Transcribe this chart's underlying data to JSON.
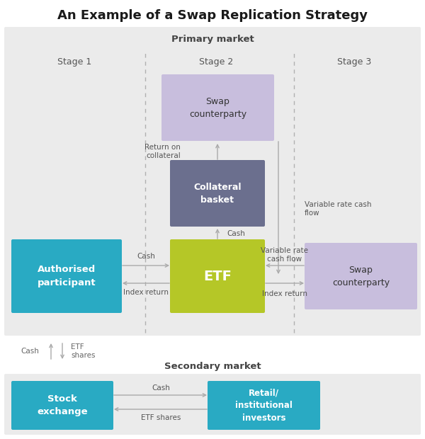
{
  "title": "An Example of a Swap Replication Strategy",
  "primary_market_label": "Primary market",
  "secondary_market_label": "Secondary market",
  "stage1_label": "Stage 1",
  "stage2_label": "Stage 2",
  "stage3_label": "Stage 3",
  "arrow_color": "#aaaaaa",
  "text_color_dark": "#444444",
  "text_color_mid": "#666666",
  "bg_primary": "#ebebeb",
  "bg_secondary": "#ebebeb",
  "color_swap_top": "#c8bedd",
  "color_collateral": "#6b6f8e",
  "color_etf": "#b5c727",
  "color_auth": "#29aac3",
  "color_swap_right": "#c8bedd",
  "color_stock": "#29aac3",
  "color_retail": "#29aac3"
}
